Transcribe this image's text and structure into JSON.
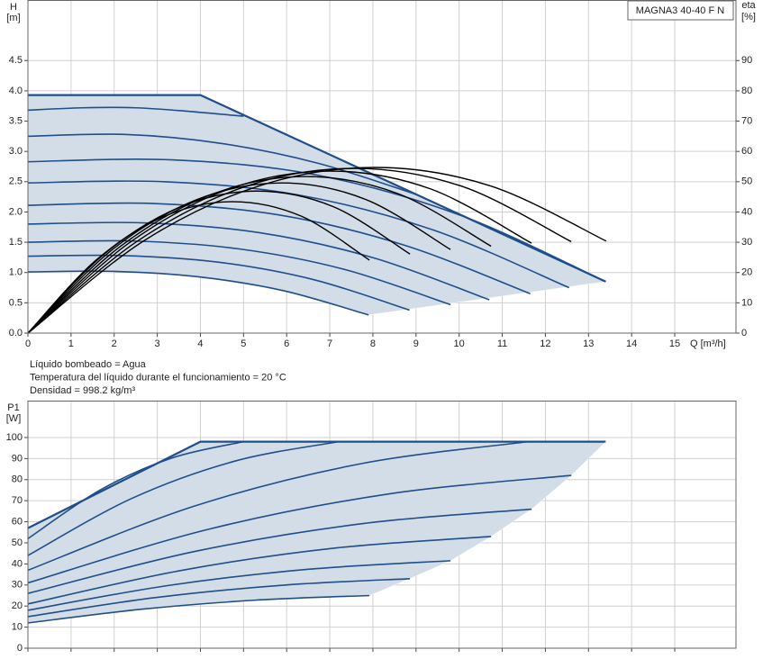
{
  "chart_data": [
    {
      "type": "line",
      "title": "MAGNA3 40-40 F N",
      "ylabel": "H",
      "yunit": "[m]",
      "y2label": "eta",
      "y2unit": "[%]",
      "xlabel": "Q [m³/h]",
      "xlim": [
        0,
        16.42
      ],
      "ylim": [
        0,
        5.5
      ],
      "y2lim": [
        0,
        110
      ],
      "xticks": [
        0,
        1,
        2,
        3,
        4,
        5,
        6,
        7,
        8,
        9,
        10,
        11,
        12,
        13,
        14,
        15
      ],
      "yticks": [
        {
          "value": 0,
          "label": "0.0"
        },
        {
          "value": 0.5,
          "label": "0.5"
        },
        {
          "value": 1,
          "label": "1.0"
        },
        {
          "value": 1.5,
          "label": "1.5"
        },
        {
          "value": 2,
          "label": "2.0"
        },
        {
          "value": 2.5,
          "label": "2.5"
        },
        {
          "value": 3,
          "label": "3.0"
        },
        {
          "value": 3.5,
          "label": "3.5"
        },
        {
          "value": 4,
          "label": "4.0"
        },
        {
          "value": 4.5,
          "label": "4.5"
        }
      ],
      "y2ticks": [
        0,
        10,
        20,
        30,
        40,
        50,
        60,
        70,
        80,
        90
      ],
      "show_xtick_labels": true,
      "grid": true,
      "fill_color": "#d3dde8",
      "annotations": [
        "Líquido bombeado = Agua",
        "Temperatura del líquido durante el funcionamiento = 20 °C",
        "Densidad = 998.2 kg/m³"
      ],
      "series": [
        {
          "color": "#1f4e89",
          "width": 2.2,
          "smooth": false,
          "x": [
            0,
            4,
            13.4
          ],
          "values": [
            3.93,
            3.93,
            0.85
          ]
        },
        {
          "color": "#ffffff",
          "width": 0.5,
          "smooth": false,
          "x": [
            13.4,
            7.9
          ],
          "values": [
            0.85,
            0.3
          ]
        },
        {
          "color": "#1f4e89",
          "width": 1.6,
          "smooth": true,
          "x": [
            0,
            1.98,
            3.95,
            5.93,
            7.9
          ],
          "values": [
            1.01,
            1.02,
            0.93,
            0.7,
            0.3
          ]
        },
        {
          "color": "#1f4e89",
          "width": 1.6,
          "smooth": true,
          "x": [
            0,
            2.21,
            4.43,
            6.64,
            8.85
          ],
          "values": [
            1.27,
            1.28,
            1.17,
            0.88,
            0.38
          ]
        },
        {
          "color": "#1f4e89",
          "width": 1.6,
          "smooth": true,
          "x": [
            0,
            2.45,
            4.9,
            7.35,
            9.8
          ],
          "values": [
            1.5,
            1.52,
            1.39,
            1.05,
            0.47
          ]
        },
        {
          "color": "#1f4e89",
          "width": 1.6,
          "smooth": true,
          "x": [
            0,
            2.68,
            5.35,
            8.03,
            10.7
          ],
          "values": [
            1.8,
            1.82,
            1.66,
            1.24,
            0.55
          ]
        },
        {
          "color": "#1f4e89",
          "width": 1.6,
          "smooth": true,
          "x": [
            0,
            2.91,
            5.83,
            8.74,
            11.65
          ],
          "values": [
            2.11,
            2.14,
            1.95,
            1.45,
            0.65
          ]
        },
        {
          "color": "#1f4e89",
          "width": 1.6,
          "smooth": true,
          "x": [
            0,
            3.14,
            6.28,
            9.41,
            12.55
          ],
          "values": [
            2.48,
            2.5,
            2.28,
            1.7,
            0.75
          ]
        },
        {
          "color": "#1f4e89",
          "width": 1.6,
          "smooth": true,
          "x": [
            0,
            3.35,
            6.7,
            10.05,
            13.4
          ],
          "values": [
            2.83,
            2.86,
            2.61,
            1.94,
            0.85
          ]
        },
        {
          "color": "#1f4e89",
          "width": 1.6,
          "smooth": true,
          "x": [
            0,
            2.25,
            4.5,
            6.75,
            9
          ],
          "values": [
            3.25,
            3.28,
            3.13,
            2.8,
            2.29
          ]
        },
        {
          "color": "#1f4e89",
          "width": 1.6,
          "smooth": true,
          "x": [
            0,
            1.25,
            2.5,
            3.75,
            5
          ],
          "values": [
            3.68,
            3.72,
            3.72,
            3.66,
            3.58
          ]
        },
        {
          "color": "#000000",
          "width": 1.4,
          "smooth": true,
          "axis": "y2",
          "x": [
            0,
            1.58,
            3.17,
            4.75,
            6.34,
            7.92
          ],
          "values": [
            0,
            24.1,
            38.6,
            43.4,
            38.6,
            24.1
          ]
        },
        {
          "color": "#000000",
          "width": 1.4,
          "smooth": true,
          "axis": "y2",
          "x": [
            0,
            1.77,
            3.54,
            5.32,
            7.09,
            8.86
          ],
          "values": [
            0,
            26.1,
            41.7,
            46.9,
            41.7,
            26.1
          ]
        },
        {
          "color": "#000000",
          "width": 1.4,
          "smooth": true,
          "axis": "y2",
          "x": [
            0,
            1.96,
            3.92,
            5.88,
            7.84,
            9.8
          ],
          "values": [
            0,
            27.6,
            44.1,
            49.6,
            44.1,
            27.6
          ]
        },
        {
          "color": "#000000",
          "width": 1.4,
          "smooth": true,
          "axis": "y2",
          "x": [
            0,
            2.15,
            4.3,
            6.44,
            8.59,
            10.74
          ],
          "values": [
            0,
            28.7,
            46,
            51.7,
            46,
            28.7
          ]
        },
        {
          "color": "#000000",
          "width": 1.4,
          "smooth": true,
          "axis": "y2",
          "x": [
            0,
            2.34,
            4.67,
            7.01,
            9.34,
            11.68
          ],
          "values": [
            0,
            29.7,
            47.6,
            53.5,
            47.6,
            29.7
          ]
        },
        {
          "color": "#000000",
          "width": 1.4,
          "smooth": true,
          "axis": "y2",
          "x": [
            0,
            2.52,
            5.04,
            7.56,
            10.08,
            12.6
          ],
          "values": [
            0,
            30.2,
            48.4,
            54.4,
            48.4,
            30.2
          ]
        },
        {
          "color": "#000000",
          "width": 1.4,
          "smooth": true,
          "axis": "y2",
          "x": [
            0,
            2.68,
            5.36,
            8.05,
            10.73,
            13.41
          ],
          "values": [
            0,
            30.4,
            48.6,
            54.7,
            48.6,
            30.4
          ]
        }
      ]
    },
    {
      "type": "line",
      "ylabel": "P1",
      "yunit": "[W]",
      "xlim": [
        0,
        16.42
      ],
      "ylim": [
        0,
        117.5
      ],
      "xticks": [
        0,
        1,
        2,
        3,
        4,
        5,
        6,
        7,
        8,
        9,
        10,
        11,
        12,
        13,
        14,
        15
      ],
      "yticks": [
        0,
        10,
        20,
        30,
        40,
        50,
        60,
        70,
        80,
        90,
        100
      ],
      "show_xtick_labels": false,
      "grid": true,
      "fill_color": "#d3dde8",
      "series": [
        {
          "color": "#1f4e89",
          "width": 2.2,
          "smooth": false,
          "x": [
            0,
            4,
            13.4
          ],
          "values": [
            57,
            98,
            98
          ]
        },
        {
          "color": "#ffffff",
          "width": 0.5,
          "smooth": false,
          "x": [
            13.4,
            12.6,
            11.68,
            10.74,
            9.8,
            8.86,
            7.92
          ],
          "values": [
            98,
            82,
            66,
            53,
            41.5,
            33,
            25
          ]
        },
        {
          "color": "#1f4e89",
          "width": 1.6,
          "smooth": true,
          "x": [
            0,
            2.64,
            5.28,
            7.92
          ],
          "values": [
            12,
            18.5,
            22.8,
            25
          ]
        },
        {
          "color": "#1f4e89",
          "width": 1.6,
          "smooth": true,
          "x": [
            0,
            2.95,
            5.91,
            8.86
          ],
          "values": [
            15,
            24,
            29.9,
            33
          ]
        },
        {
          "color": "#1f4e89",
          "width": 1.6,
          "smooth": true,
          "x": [
            0,
            3.27,
            6.53,
            9.8
          ],
          "values": [
            18,
            29.8,
            37.5,
            41.5
          ]
        },
        {
          "color": "#1f4e89",
          "width": 1.6,
          "smooth": true,
          "x": [
            0,
            3.58,
            7.16,
            10.74
          ],
          "values": [
            21,
            37,
            47.6,
            53
          ]
        },
        {
          "color": "#1f4e89",
          "width": 1.6,
          "smooth": true,
          "x": [
            0,
            3.89,
            7.79,
            11.68
          ],
          "values": [
            26,
            46,
            59.2,
            66
          ]
        },
        {
          "color": "#1f4e89",
          "width": 1.6,
          "smooth": true,
          "x": [
            0,
            4.2,
            8.4,
            12.6
          ],
          "values": [
            31,
            56.5,
            73.3,
            82
          ]
        },
        {
          "color": "#1f4e89",
          "width": 1.6,
          "smooth": true,
          "x": [
            0,
            3.87,
            7.73,
            11.6
          ],
          "values": [
            37,
            67.5,
            87.6,
            98
          ]
        },
        {
          "color": "#1f4e89",
          "width": 1.6,
          "smooth": true,
          "x": [
            0,
            2.4,
            4.8,
            7.2
          ],
          "values": [
            44,
            71,
            88.8,
            98
          ]
        },
        {
          "color": "#1f4e89",
          "width": 1.6,
          "smooth": true,
          "x": [
            0,
            1.67,
            3.33,
            5
          ],
          "values": [
            52,
            75,
            90.2,
            98
          ]
        }
      ]
    }
  ]
}
